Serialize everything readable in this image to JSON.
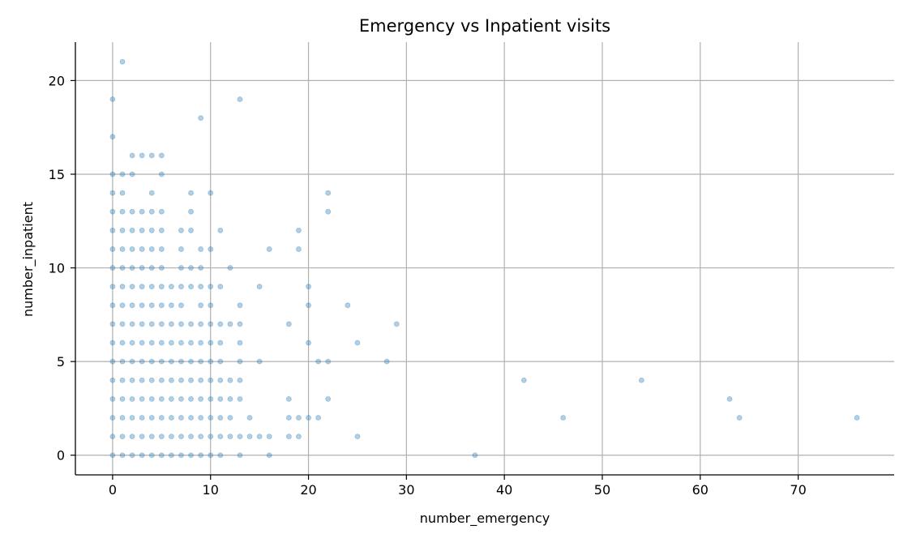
{
  "chart_data": {
    "type": "scatter",
    "title": "Emergency vs Inpatient visits",
    "xlabel": "number_emergency",
    "ylabel": "number_inpatient",
    "xlim": [
      -3.8,
      79.8
    ],
    "ylim": [
      -1.05,
      22.05
    ],
    "xticks": [
      0,
      10,
      20,
      30,
      40,
      50,
      60,
      70
    ],
    "yticks": [
      0,
      5,
      10,
      15,
      20
    ],
    "grid": true,
    "marker_color": "#1f77b4",
    "marker_alpha": 0.35,
    "points": [
      [
        0,
        0
      ],
      [
        1,
        0
      ],
      [
        2,
        0
      ],
      [
        3,
        0
      ],
      [
        4,
        0
      ],
      [
        5,
        0
      ],
      [
        6,
        0
      ],
      [
        7,
        0
      ],
      [
        8,
        0
      ],
      [
        9,
        0
      ],
      [
        10,
        0
      ],
      [
        11,
        0
      ],
      [
        13,
        0
      ],
      [
        16,
        0
      ],
      [
        37,
        0
      ],
      [
        0,
        1
      ],
      [
        1,
        1
      ],
      [
        2,
        1
      ],
      [
        3,
        1
      ],
      [
        4,
        1
      ],
      [
        5,
        1
      ],
      [
        6,
        1
      ],
      [
        7,
        1
      ],
      [
        8,
        1
      ],
      [
        9,
        1
      ],
      [
        10,
        1
      ],
      [
        11,
        1
      ],
      [
        12,
        1
      ],
      [
        13,
        1
      ],
      [
        14,
        1
      ],
      [
        15,
        1
      ],
      [
        16,
        1
      ],
      [
        18,
        1
      ],
      [
        19,
        1
      ],
      [
        25,
        1
      ],
      [
        0,
        2
      ],
      [
        1,
        2
      ],
      [
        2,
        2
      ],
      [
        3,
        2
      ],
      [
        4,
        2
      ],
      [
        5,
        2
      ],
      [
        6,
        2
      ],
      [
        7,
        2
      ],
      [
        8,
        2
      ],
      [
        9,
        2
      ],
      [
        10,
        2
      ],
      [
        11,
        2
      ],
      [
        12,
        2
      ],
      [
        14,
        2
      ],
      [
        18,
        2
      ],
      [
        19,
        2
      ],
      [
        20,
        2
      ],
      [
        21,
        2
      ],
      [
        46,
        2
      ],
      [
        64,
        2
      ],
      [
        76,
        2
      ],
      [
        0,
        3
      ],
      [
        1,
        3
      ],
      [
        2,
        3
      ],
      [
        3,
        3
      ],
      [
        4,
        3
      ],
      [
        5,
        3
      ],
      [
        6,
        3
      ],
      [
        7,
        3
      ],
      [
        8,
        3
      ],
      [
        9,
        3
      ],
      [
        10,
        3
      ],
      [
        11,
        3
      ],
      [
        12,
        3
      ],
      [
        13,
        3
      ],
      [
        18,
        3
      ],
      [
        22,
        3
      ],
      [
        63,
        3
      ],
      [
        0,
        4
      ],
      [
        1,
        4
      ],
      [
        2,
        4
      ],
      [
        3,
        4
      ],
      [
        4,
        4
      ],
      [
        5,
        4
      ],
      [
        6,
        4
      ],
      [
        7,
        4
      ],
      [
        8,
        4
      ],
      [
        9,
        4
      ],
      [
        10,
        4
      ],
      [
        11,
        4
      ],
      [
        12,
        4
      ],
      [
        13,
        4
      ],
      [
        42,
        4
      ],
      [
        54,
        4
      ],
      [
        0,
        5
      ],
      [
        1,
        5
      ],
      [
        2,
        5
      ],
      [
        3,
        5
      ],
      [
        4,
        5
      ],
      [
        5,
        5
      ],
      [
        6,
        5
      ],
      [
        7,
        5
      ],
      [
        8,
        5
      ],
      [
        9,
        5
      ],
      [
        10,
        5
      ],
      [
        11,
        5
      ],
      [
        13,
        5
      ],
      [
        15,
        5
      ],
      [
        21,
        5
      ],
      [
        22,
        5
      ],
      [
        28,
        5
      ],
      [
        0,
        6
      ],
      [
        1,
        6
      ],
      [
        2,
        6
      ],
      [
        3,
        6
      ],
      [
        4,
        6
      ],
      [
        5,
        6
      ],
      [
        6,
        6
      ],
      [
        7,
        6
      ],
      [
        8,
        6
      ],
      [
        9,
        6
      ],
      [
        10,
        6
      ],
      [
        11,
        6
      ],
      [
        13,
        6
      ],
      [
        20,
        6
      ],
      [
        25,
        6
      ],
      [
        0,
        7
      ],
      [
        1,
        7
      ],
      [
        2,
        7
      ],
      [
        3,
        7
      ],
      [
        4,
        7
      ],
      [
        5,
        7
      ],
      [
        6,
        7
      ],
      [
        7,
        7
      ],
      [
        8,
        7
      ],
      [
        9,
        7
      ],
      [
        10,
        7
      ],
      [
        11,
        7
      ],
      [
        12,
        7
      ],
      [
        13,
        7
      ],
      [
        18,
        7
      ],
      [
        29,
        7
      ],
      [
        0,
        8
      ],
      [
        1,
        8
      ],
      [
        2,
        8
      ],
      [
        3,
        8
      ],
      [
        4,
        8
      ],
      [
        5,
        8
      ],
      [
        6,
        8
      ],
      [
        7,
        8
      ],
      [
        9,
        8
      ],
      [
        10,
        8
      ],
      [
        13,
        8
      ],
      [
        20,
        8
      ],
      [
        24,
        8
      ],
      [
        0,
        9
      ],
      [
        1,
        9
      ],
      [
        2,
        9
      ],
      [
        3,
        9
      ],
      [
        4,
        9
      ],
      [
        5,
        9
      ],
      [
        6,
        9
      ],
      [
        7,
        9
      ],
      [
        8,
        9
      ],
      [
        9,
        9
      ],
      [
        10,
        9
      ],
      [
        11,
        9
      ],
      [
        15,
        9
      ],
      [
        20,
        9
      ],
      [
        0,
        10
      ],
      [
        1,
        10
      ],
      [
        2,
        10
      ],
      [
        3,
        10
      ],
      [
        4,
        10
      ],
      [
        5,
        10
      ],
      [
        7,
        10
      ],
      [
        8,
        10
      ],
      [
        9,
        10
      ],
      [
        12,
        10
      ],
      [
        0,
        11
      ],
      [
        1,
        11
      ],
      [
        2,
        11
      ],
      [
        3,
        11
      ],
      [
        4,
        11
      ],
      [
        5,
        11
      ],
      [
        7,
        11
      ],
      [
        9,
        11
      ],
      [
        10,
        11
      ],
      [
        16,
        11
      ],
      [
        19,
        11
      ],
      [
        0,
        12
      ],
      [
        1,
        12
      ],
      [
        2,
        12
      ],
      [
        3,
        12
      ],
      [
        4,
        12
      ],
      [
        5,
        12
      ],
      [
        7,
        12
      ],
      [
        8,
        12
      ],
      [
        11,
        12
      ],
      [
        19,
        12
      ],
      [
        0,
        13
      ],
      [
        1,
        13
      ],
      [
        2,
        13
      ],
      [
        3,
        13
      ],
      [
        4,
        13
      ],
      [
        5,
        13
      ],
      [
        8,
        13
      ],
      [
        22,
        13
      ],
      [
        0,
        14
      ],
      [
        1,
        14
      ],
      [
        4,
        14
      ],
      [
        8,
        14
      ],
      [
        10,
        14
      ],
      [
        22,
        14
      ],
      [
        0,
        15
      ],
      [
        1,
        15
      ],
      [
        2,
        15
      ],
      [
        5,
        15
      ],
      [
        2,
        16
      ],
      [
        3,
        16
      ],
      [
        4,
        16
      ],
      [
        5,
        16
      ],
      [
        0,
        17
      ],
      [
        9,
        18
      ],
      [
        0,
        19
      ],
      [
        13,
        19
      ],
      [
        1,
        21
      ]
    ]
  }
}
